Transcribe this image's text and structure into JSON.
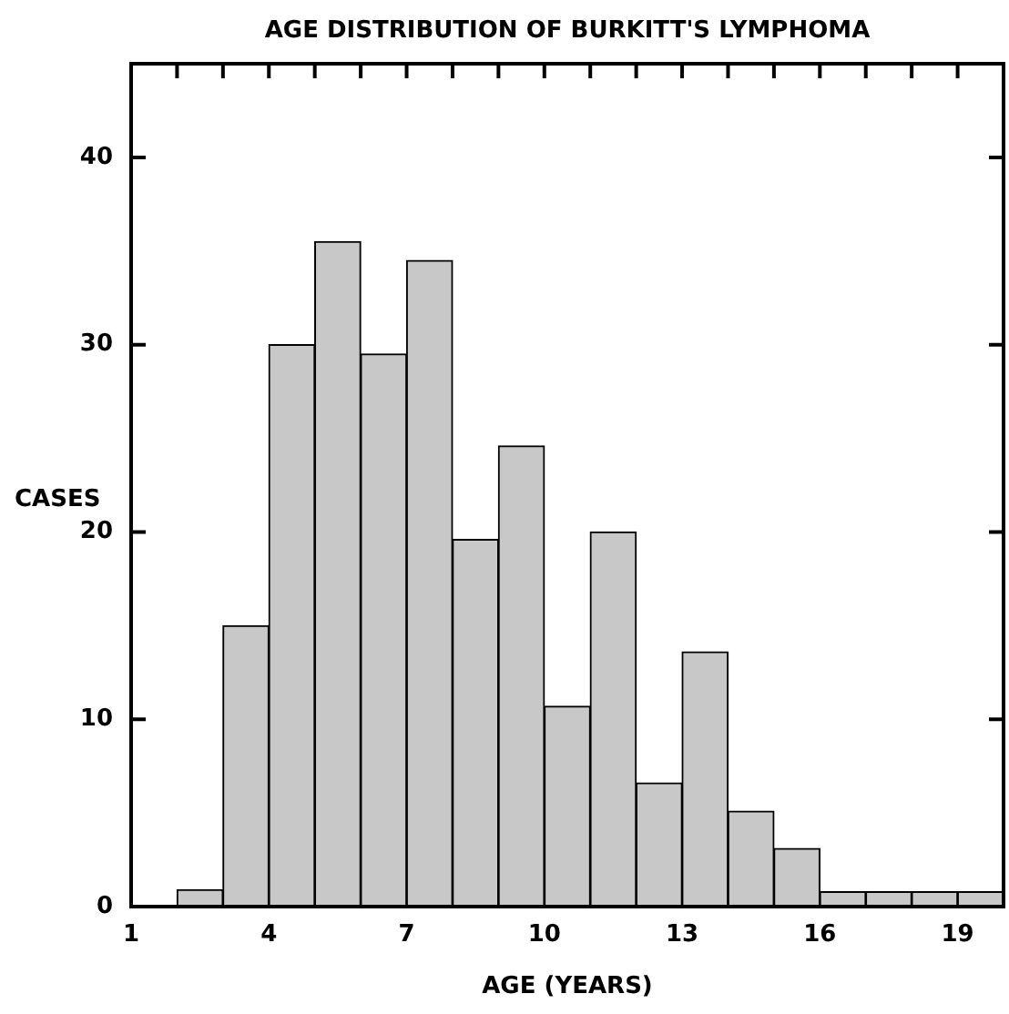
{
  "chart_data": {
    "type": "histogram",
    "title": "AGE DISTRIBUTION OF BURKITT'S LYMPHOMA",
    "xlabel": "AGE (YEARS)",
    "ylabel": "CASES",
    "bins": [
      2,
      3,
      4,
      5,
      6,
      7,
      8,
      9,
      10,
      11,
      12,
      13,
      14,
      15,
      16,
      17,
      18,
      19,
      20
    ],
    "values": [
      0.9,
      15,
      30,
      35.5,
      29.5,
      34.5,
      19.6,
      24.6,
      10.7,
      20,
      6.6,
      13.6,
      5.1,
      3.1,
      0.8,
      0.8,
      0.8,
      0.8
    ],
    "color": "#c8c8c8",
    "xlim": [
      1,
      20
    ],
    "xticks": [
      1,
      {
        "value": 2,
        "label": null
      },
      {
        "value": 3,
        "label": null
      },
      4,
      {
        "value": 5,
        "label": null
      },
      {
        "value": 6,
        "label": null
      },
      7,
      {
        "value": 8,
        "label": null
      },
      {
        "value": 9,
        "label": null
      },
      10,
      {
        "value": 11,
        "label": null
      },
      {
        "value": 12,
        "label": null
      },
      13,
      {
        "value": 14,
        "label": null
      },
      {
        "value": 15,
        "label": null
      },
      16,
      {
        "value": 17,
        "label": null
      },
      {
        "value": 18,
        "label": null
      },
      19
    ],
    "ylim": [
      0,
      45
    ],
    "yticks": [
      0,
      10,
      20,
      30,
      40
    ],
    "grid": false,
    "legend": false
  }
}
